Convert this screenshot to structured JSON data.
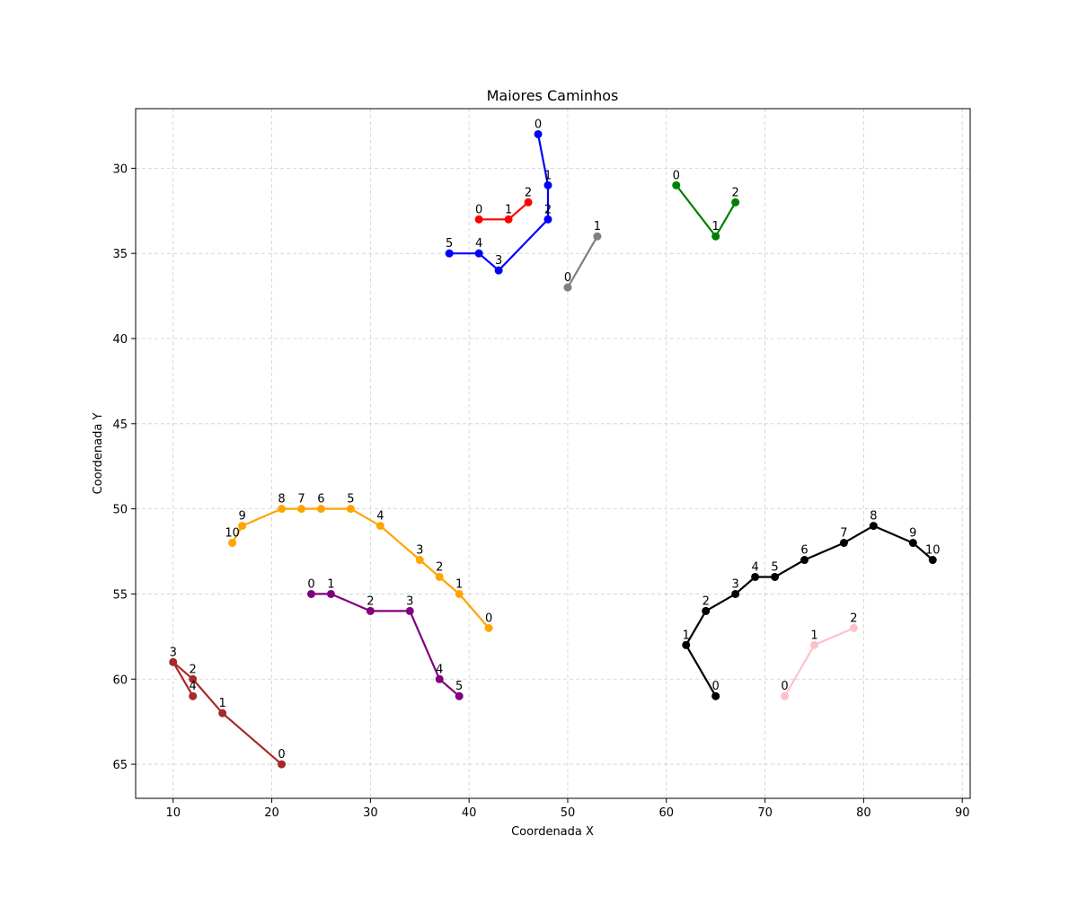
{
  "chart_data": {
    "type": "line",
    "title": "Maiores Caminhos",
    "xlabel": "Coordenada X",
    "ylabel": "Coordenada Y",
    "xlim": [
      6.2,
      90.8
    ],
    "ylim": [
      67.0,
      26.5
    ],
    "y_inverted": true,
    "xticks": [
      10,
      20,
      30,
      40,
      50,
      60,
      70,
      80,
      90
    ],
    "yticks": [
      30,
      35,
      40,
      45,
      50,
      55,
      60,
      65
    ],
    "grid": true,
    "series": [
      {
        "color": "#0000ff",
        "points": [
          [
            47,
            28,
            "0"
          ],
          [
            48,
            31,
            "1"
          ],
          [
            48,
            33,
            "2"
          ],
          [
            43,
            36,
            "3"
          ],
          [
            41,
            35,
            "4"
          ],
          [
            38,
            35,
            "5"
          ]
        ]
      },
      {
        "color": "#ff0000",
        "points": [
          [
            41,
            33,
            "0"
          ],
          [
            44,
            33,
            "1"
          ],
          [
            46,
            32,
            "2"
          ]
        ]
      },
      {
        "color": "#808080",
        "points": [
          [
            50,
            37,
            "0"
          ],
          [
            53,
            34,
            "1"
          ]
        ]
      },
      {
        "color": "#008000",
        "points": [
          [
            61,
            31,
            "0"
          ],
          [
            65,
            34,
            "1"
          ],
          [
            67,
            32,
            "2"
          ]
        ]
      },
      {
        "color": "#ffa500",
        "points": [
          [
            42,
            57,
            "0"
          ],
          [
            39,
            55,
            "1"
          ],
          [
            37,
            54,
            "2"
          ],
          [
            35,
            53,
            "3"
          ],
          [
            31,
            51,
            "4"
          ],
          [
            28,
            50,
            "5"
          ],
          [
            25,
            50,
            "6"
          ],
          [
            23,
            50,
            "7"
          ],
          [
            21,
            50,
            "8"
          ],
          [
            17,
            51,
            "9"
          ],
          [
            16,
            52,
            "10"
          ]
        ]
      },
      {
        "color": "#800080",
        "points": [
          [
            24,
            55,
            "0"
          ],
          [
            26,
            55,
            "1"
          ],
          [
            30,
            56,
            "2"
          ],
          [
            34,
            56,
            "3"
          ],
          [
            37,
            60,
            "4"
          ],
          [
            39,
            61,
            "5"
          ]
        ]
      },
      {
        "color": "#a52a2a",
        "points": [
          [
            21,
            65,
            "0"
          ],
          [
            15,
            62,
            "1"
          ],
          [
            12,
            60,
            "2"
          ],
          [
            10,
            59,
            "3"
          ],
          [
            12,
            61,
            "4"
          ]
        ]
      },
      {
        "color": "#000000",
        "points": [
          [
            65,
            61,
            "0"
          ],
          [
            62,
            58,
            "1"
          ],
          [
            64,
            56,
            "2"
          ],
          [
            67,
            55,
            "3"
          ],
          [
            69,
            54,
            "4"
          ],
          [
            71,
            54,
            "5"
          ],
          [
            74,
            53,
            "6"
          ],
          [
            78,
            52,
            "7"
          ],
          [
            81,
            51,
            "8"
          ],
          [
            85,
            52,
            "9"
          ],
          [
            87,
            53,
            "10"
          ]
        ]
      },
      {
        "color": "#ffc0cb",
        "points": [
          [
            72,
            61,
            "0"
          ],
          [
            75,
            58,
            "1"
          ],
          [
            79,
            57,
            "2"
          ]
        ]
      }
    ]
  }
}
